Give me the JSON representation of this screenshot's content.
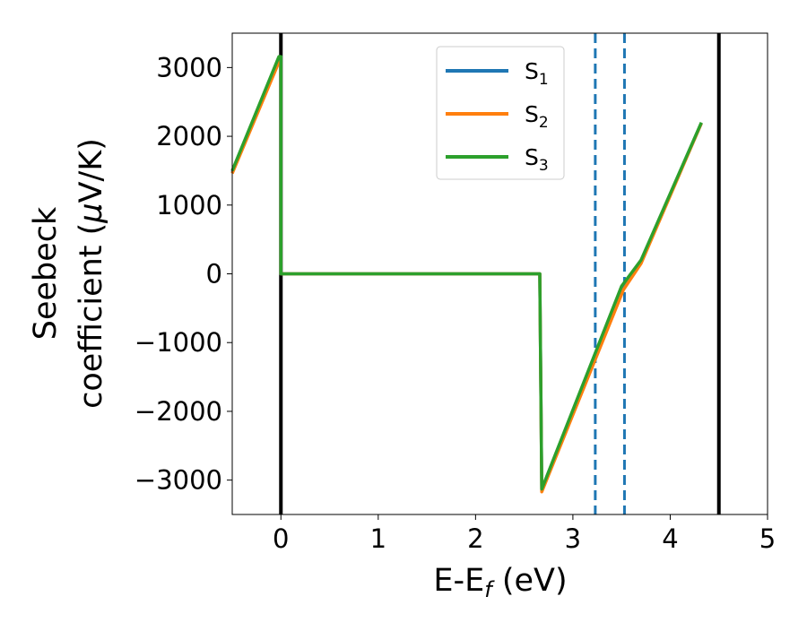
{
  "chart_data": {
    "type": "line",
    "title": "",
    "xlabel": {
      "main": "E-E",
      "sub": "f",
      "suffix": " (eV)"
    },
    "ylabel": {
      "line1": "Seebeck",
      "line2_pre": "coefficient  (",
      "line2_mu": "μ",
      "line2_post": "V/K)"
    },
    "xlim": [
      -0.5,
      5
    ],
    "ylim": [
      -3500,
      3500
    ],
    "xticks": [
      0,
      1,
      2,
      3,
      4,
      5
    ],
    "xtick_labels": [
      "0",
      "1",
      "2",
      "3",
      "4",
      "5"
    ],
    "yticks": [
      3000,
      2000,
      1000,
      0,
      -1000,
      -2000,
      -3000
    ],
    "ytick_labels": [
      "3000",
      "2000",
      "1000",
      "0",
      "−1000",
      "−2000",
      "−3000"
    ],
    "grid": false,
    "legend_position": "top-center",
    "series": [
      {
        "name": "S",
        "subscript": "1",
        "color": "#1f77b4",
        "x": [
          -0.5,
          -0.02,
          0.0,
          0.0,
          2.66,
          2.66,
          2.68,
          3.5,
          3.7,
          4.32
        ],
        "y": [
          1480,
          3120,
          3120,
          0,
          0,
          -10,
          -3140,
          -200,
          180,
          2190
        ]
      },
      {
        "name": "S",
        "subscript": "2",
        "color": "#ff7f0e",
        "x": [
          -0.5,
          -0.02,
          0.0,
          0.0,
          2.66,
          2.66,
          2.68,
          3.52,
          3.7,
          4.32
        ],
        "y": [
          1460,
          3080,
          3080,
          0,
          0,
          -10,
          -3170,
          -230,
          150,
          2190
        ]
      },
      {
        "name": "S",
        "subscript": "3",
        "color": "#2ca02c",
        "x": [
          -0.5,
          -0.02,
          0.0,
          0.0,
          2.66,
          2.66,
          2.68,
          3.5,
          3.7,
          4.32
        ],
        "y": [
          1500,
          3160,
          3160,
          0,
          0,
          -10,
          -3130,
          -180,
          200,
          2200
        ]
      }
    ],
    "vlines": [
      {
        "x": 0.0,
        "color": "#000000",
        "style": "solid"
      },
      {
        "x": 4.5,
        "color": "#000000",
        "style": "solid"
      },
      {
        "x": 3.23,
        "color": "#1f77b4",
        "style": "dashed"
      },
      {
        "x": 3.53,
        "color": "#1f77b4",
        "style": "dashed"
      }
    ]
  }
}
